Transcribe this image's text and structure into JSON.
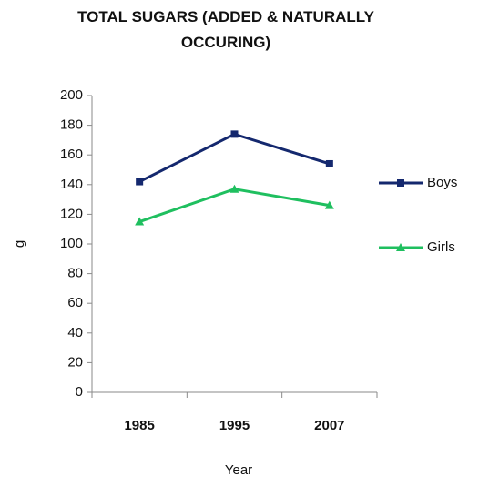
{
  "chart_data": {
    "type": "line",
    "title_lines": [
      "TOTAL SUGARS (ADDED & NATURALLY",
      "OCCURING)"
    ],
    "xlabel": "Year",
    "ylabel": "g",
    "categories": [
      "1985",
      "1995",
      "2007"
    ],
    "ylim": [
      0,
      200
    ],
    "yticks": [
      0,
      20,
      40,
      60,
      80,
      100,
      120,
      140,
      160,
      180,
      200
    ],
    "grid": false,
    "legend_position": "right",
    "series": [
      {
        "name": "Boys",
        "values": [
          142,
          174,
          154
        ],
        "color": "#14286e",
        "marker": "square"
      },
      {
        "name": "Girls",
        "values": [
          115,
          137,
          126
        ],
        "color": "#1fbf5f",
        "marker": "triangle"
      }
    ]
  }
}
